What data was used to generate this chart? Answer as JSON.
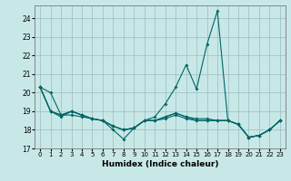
{
  "xlabel": "Humidex (Indice chaleur)",
  "background_color": "#c8e8e8",
  "grid_color": "#9bbcbc",
  "line_color": "#006666",
  "xlim": [
    -0.5,
    23.5
  ],
  "ylim": [
    17,
    24.7
  ],
  "yticks": [
    17,
    18,
    19,
    20,
    21,
    22,
    23,
    24
  ],
  "xticks": [
    0,
    1,
    2,
    3,
    4,
    5,
    6,
    7,
    8,
    9,
    10,
    11,
    12,
    13,
    14,
    15,
    16,
    17,
    18,
    19,
    20,
    21,
    22,
    23
  ],
  "series": [
    [
      20.3,
      20.0,
      18.8,
      18.8,
      18.7,
      18.6,
      18.5,
      18.0,
      17.5,
      18.1,
      18.5,
      18.7,
      19.4,
      20.3,
      21.5,
      20.2,
      22.6,
      24.4,
      18.5,
      18.3,
      17.6,
      17.7,
      18.0,
      18.5
    ],
    [
      20.3,
      19.0,
      18.8,
      19.0,
      18.8,
      18.6,
      18.5,
      18.2,
      18.0,
      18.1,
      18.5,
      18.5,
      18.7,
      18.9,
      18.7,
      18.5,
      18.5,
      18.5,
      18.5,
      18.3,
      17.6,
      17.7,
      18.0,
      18.5
    ],
    [
      20.3,
      19.0,
      18.8,
      19.0,
      18.8,
      18.6,
      18.5,
      18.2,
      18.0,
      18.1,
      18.5,
      18.5,
      18.7,
      18.9,
      18.7,
      18.6,
      18.6,
      18.5,
      18.5,
      18.3,
      17.6,
      17.7,
      18.0,
      18.5
    ],
    [
      20.3,
      19.0,
      18.7,
      19.0,
      18.8,
      18.6,
      18.5,
      18.2,
      18.0,
      18.1,
      18.5,
      18.5,
      18.6,
      18.8,
      18.6,
      18.5,
      18.5,
      18.5,
      18.5,
      18.3,
      17.6,
      17.7,
      18.0,
      18.5
    ]
  ]
}
